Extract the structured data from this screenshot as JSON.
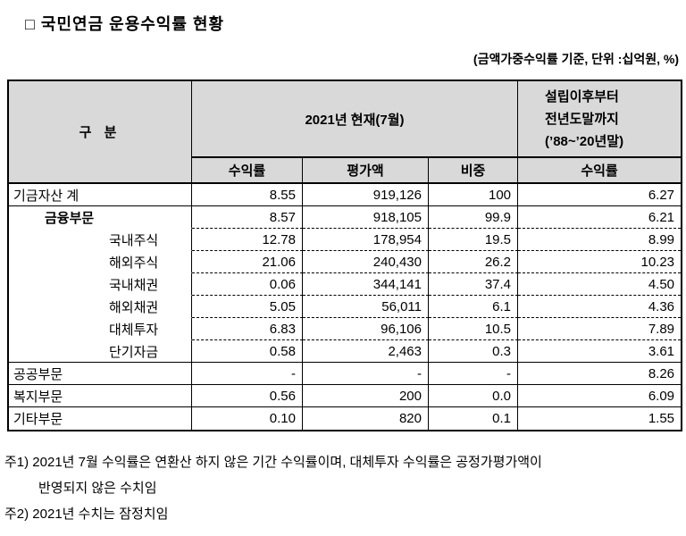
{
  "colors": {
    "header_bg": "#d9d9d9",
    "border": "#000000"
  },
  "page": {
    "title_marker": "□",
    "title_text": "국민연금 운용수익률 현황",
    "unit_note": "(금액가중수익률 기준, 단위 :십억원, %)"
  },
  "table": {
    "header": {
      "category": "구 분",
      "current_period": "2021년 현재(7월)",
      "since_lines": [
        "설립이후부터",
        "전년도말까지",
        "(’88~’20년말)"
      ],
      "sub": [
        "수익률",
        "평가액",
        "비중",
        "수익률"
      ]
    },
    "rows": [
      {
        "label": "기금자산 계",
        "values": [
          "8.55",
          "919,126",
          "100",
          "6.27"
        ]
      },
      {
        "label": "금융부문",
        "values": [
          "8.57",
          "918,105",
          "99.9",
          "6.21"
        ]
      },
      {
        "label": "국내주식",
        "values": [
          "12.78",
          "178,954",
          "19.5",
          "8.99"
        ]
      },
      {
        "label": "해외주식",
        "values": [
          "21.06",
          "240,430",
          "26.2",
          "10.23"
        ]
      },
      {
        "label": "국내채권",
        "values": [
          "0.06",
          "344,141",
          "37.4",
          "4.50"
        ]
      },
      {
        "label": "해외채권",
        "values": [
          "5.05",
          "56,011",
          "6.1",
          "4.36"
        ]
      },
      {
        "label": "대체투자",
        "values": [
          "6.83",
          "96,106",
          "10.5",
          "7.89"
        ]
      },
      {
        "label": "단기자금",
        "values": [
          "0.58",
          "2,463",
          "0.3",
          "3.61"
        ]
      },
      {
        "label": "공공부문",
        "values": [
          "-",
          "-",
          "-",
          "8.26"
        ]
      },
      {
        "label": "복지부문",
        "values": [
          "0.56",
          "200",
          "0.0",
          "6.09"
        ]
      },
      {
        "label": "기타부문",
        "values": [
          "0.10",
          "820",
          "0.1",
          "1.55"
        ]
      }
    ]
  },
  "footnotes": [
    "주1) 2021년 7월 수익률은 연환산 하지 않은 기간 수익률이며, 대체투자 수익률은 공정가평가액이",
    "반영되지 않은 수치임",
    "주2) 2021년 수치는 잠정치임"
  ]
}
